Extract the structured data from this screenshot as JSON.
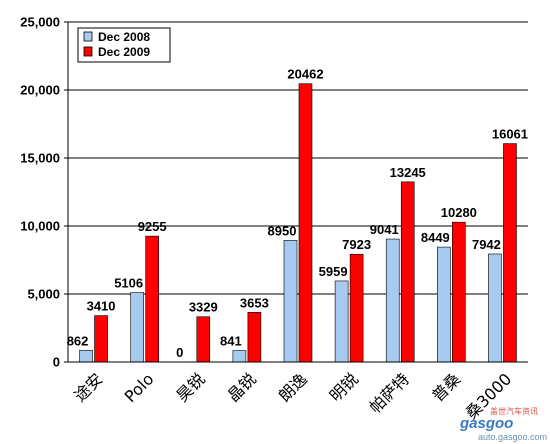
{
  "chart_data": {
    "type": "bar",
    "categories": [
      "途安",
      "Polo",
      "昊锐",
      "晶锐",
      "朗逸",
      "明锐",
      "帕萨特",
      "普桑",
      "桑3000"
    ],
    "series": [
      {
        "name": "Dec 2008",
        "values": [
          862,
          5106,
          0,
          841,
          8950,
          5959,
          9041,
          8449,
          7942
        ],
        "color": "#a6caf0"
      },
      {
        "name": "Dec 2009",
        "values": [
          3410,
          9255,
          3329,
          3653,
          20462,
          7923,
          13245,
          10280,
          16061
        ],
        "color": "#ff0000"
      }
    ],
    "data_labels": [
      [
        "862",
        "5106",
        "0",
        "841",
        "8950",
        "5959",
        "9041",
        "8449",
        "7942"
      ],
      [
        "3410",
        "9255",
        "3329",
        "3653",
        "20462",
        "7923",
        "13245",
        "10280",
        "16061"
      ]
    ],
    "y_ticks": [
      0,
      5000,
      10000,
      15000,
      20000,
      25000
    ],
    "y_tick_labels": [
      "0",
      "5,000",
      "10,000",
      "15,000",
      "20,000",
      "25,000"
    ],
    "ylim": [
      0,
      25000
    ],
    "title": "",
    "xlabel": "",
    "ylabel": "",
    "grid": true,
    "legend_position": "top-left"
  },
  "watermark": {
    "line1": "盖世汽车资讯",
    "brand": "gasgoo",
    "url": "auto.gasgoo.com"
  }
}
